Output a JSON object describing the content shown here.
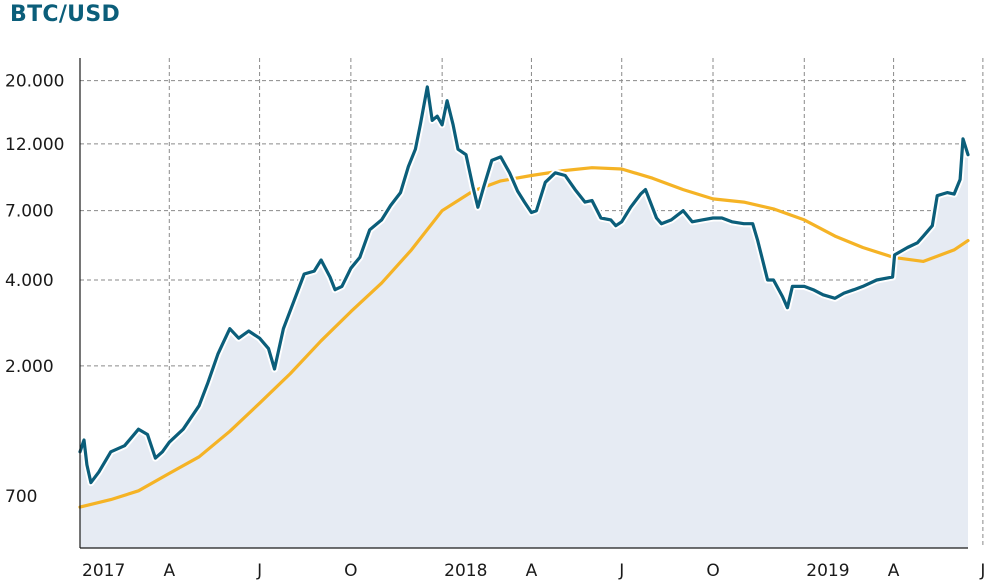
{
  "chart_data": {
    "type": "line",
    "title": "BTC/USD",
    "xlabel": "",
    "ylabel": "",
    "y_scale": "log",
    "ylim": [
      460,
      24000
    ],
    "xlim": [
      "2017-01-01",
      "2019-06-15"
    ],
    "grid": true,
    "legend": "none",
    "colors": {
      "title": "#0b5e7a",
      "price": "#0b5e7a",
      "price_halo": "#ffffff",
      "moving_average": "#f5b325",
      "area_fill": "#e6ebf3",
      "grid": "#8a8a8a",
      "axis": "#1a1a1a"
    },
    "y_ticks": [
      {
        "value": 700,
        "label": "700"
      },
      {
        "value": 2000,
        "label": "2.000"
      },
      {
        "value": 4000,
        "label": "4.000"
      },
      {
        "value": 7000,
        "label": "7.000"
      },
      {
        "value": 12000,
        "label": "12.000"
      },
      {
        "value": 20000,
        "label": "20.000"
      }
    ],
    "x_ticks": [
      {
        "date": "2017-01-01",
        "label": "2017"
      },
      {
        "date": "2017-04-01",
        "label": "A"
      },
      {
        "date": "2017-07-01",
        "label": "J"
      },
      {
        "date": "2017-10-01",
        "label": "O"
      },
      {
        "date": "2018-01-01",
        "label": "2018"
      },
      {
        "date": "2018-04-01",
        "label": "A"
      },
      {
        "date": "2018-07-01",
        "label": "J"
      },
      {
        "date": "2018-10-01",
        "label": "O"
      },
      {
        "date": "2019-01-01",
        "label": "2019"
      },
      {
        "date": "2019-04-01",
        "label": "A"
      },
      {
        "date": "2019-06-30",
        "label": "J"
      }
    ],
    "series": [
      {
        "role": "price",
        "x": [
          "2017-01-01",
          "2017-01-05",
          "2017-01-08",
          "2017-01-12",
          "2017-01-20",
          "2017-02-01",
          "2017-02-15",
          "2017-03-01",
          "2017-03-10",
          "2017-03-18",
          "2017-03-25",
          "2017-04-01",
          "2017-04-15",
          "2017-05-01",
          "2017-05-10",
          "2017-05-20",
          "2017-05-25",
          "2017-06-01",
          "2017-06-10",
          "2017-06-20",
          "2017-07-01",
          "2017-07-10",
          "2017-07-16",
          "2017-07-25",
          "2017-08-05",
          "2017-08-15",
          "2017-08-25",
          "2017-09-01",
          "2017-09-10",
          "2017-09-15",
          "2017-09-22",
          "2017-10-01",
          "2017-10-10",
          "2017-10-20",
          "2017-11-01",
          "2017-11-10",
          "2017-11-20",
          "2017-11-28",
          "2017-12-05",
          "2017-12-10",
          "2017-12-17",
          "2017-12-22",
          "2017-12-27",
          "2018-01-01",
          "2018-01-06",
          "2018-01-12",
          "2018-01-17",
          "2018-01-25",
          "2018-02-01",
          "2018-02-06",
          "2018-02-12",
          "2018-02-20",
          "2018-03-01",
          "2018-03-10",
          "2018-03-18",
          "2018-03-25",
          "2018-04-01",
          "2018-04-06",
          "2018-04-15",
          "2018-04-25",
          "2018-05-05",
          "2018-05-15",
          "2018-05-25",
          "2018-06-01",
          "2018-06-10",
          "2018-06-20",
          "2018-06-25",
          "2018-07-01",
          "2018-07-10",
          "2018-07-20",
          "2018-07-25",
          "2018-08-05",
          "2018-08-10",
          "2018-08-20",
          "2018-09-01",
          "2018-09-10",
          "2018-09-20",
          "2018-10-01",
          "2018-10-10",
          "2018-10-20",
          "2018-11-01",
          "2018-11-10",
          "2018-11-15",
          "2018-11-20",
          "2018-11-25",
          "2018-12-01",
          "2018-12-10",
          "2018-12-15",
          "2018-12-20",
          "2018-12-25",
          "2019-01-01",
          "2019-01-10",
          "2019-01-20",
          "2019-02-01",
          "2019-02-10",
          "2019-02-20",
          "2019-03-01",
          "2019-03-15",
          "2019-03-31",
          "2019-04-02",
          "2019-04-15",
          "2019-04-25",
          "2019-05-01",
          "2019-05-10",
          "2019-05-15",
          "2019-05-20",
          "2019-05-25",
          "2019-06-01",
          "2019-06-07",
          "2019-06-10",
          "2019-06-15"
        ],
        "y": [
          1000,
          1100,
          900,
          780,
          850,
          1000,
          1050,
          1200,
          1150,
          950,
          1000,
          1080,
          1200,
          1450,
          1750,
          2200,
          2400,
          2700,
          2500,
          2650,
          2500,
          2300,
          1950,
          2700,
          3400,
          4200,
          4300,
          4700,
          4100,
          3700,
          3800,
          4400,
          4800,
          6000,
          6500,
          7300,
          8100,
          10000,
          11500,
          14000,
          19000,
          14500,
          15000,
          14000,
          17000,
          14000,
          11500,
          11000,
          8500,
          7200,
          8500,
          10500,
          10800,
          9500,
          8200,
          7500,
          6900,
          7000,
          8800,
          9500,
          9300,
          8300,
          7500,
          7600,
          6600,
          6500,
          6200,
          6400,
          7200,
          8000,
          8300,
          6600,
          6300,
          6500,
          7000,
          6400,
          6500,
          6600,
          6600,
          6400,
          6300,
          6300,
          5500,
          4700,
          4000,
          4000,
          3500,
          3200,
          3800,
          3800,
          3800,
          3700,
          3550,
          3450,
          3600,
          3700,
          3800,
          4000,
          4100,
          4900,
          5200,
          5400,
          5700,
          6200,
          7900,
          8000,
          8100,
          8000,
          9000,
          12500,
          11000
        ]
      },
      {
        "role": "moving_average",
        "x": [
          "2017-01-01",
          "2017-02-01",
          "2017-03-01",
          "2017-04-01",
          "2017-05-01",
          "2017-06-01",
          "2017-07-01",
          "2017-08-01",
          "2017-09-01",
          "2017-10-01",
          "2017-11-01",
          "2017-12-01",
          "2018-01-01",
          "2018-02-01",
          "2018-03-01",
          "2018-04-01",
          "2018-05-01",
          "2018-06-01",
          "2018-07-01",
          "2018-08-01",
          "2018-09-01",
          "2018-10-01",
          "2018-11-01",
          "2018-12-01",
          "2019-01-01",
          "2019-02-01",
          "2019-03-01",
          "2019-04-01",
          "2019-05-01",
          "2019-06-01",
          "2019-06-15"
        ],
        "y": [
          640,
          680,
          730,
          840,
          960,
          1180,
          1480,
          1880,
          2450,
          3100,
          3900,
          5100,
          7000,
          8200,
          8900,
          9300,
          9650,
          9900,
          9800,
          9100,
          8300,
          7700,
          7500,
          7100,
          6500,
          5700,
          5200,
          4800,
          4650,
          5100,
          5500
        ]
      }
    ]
  }
}
